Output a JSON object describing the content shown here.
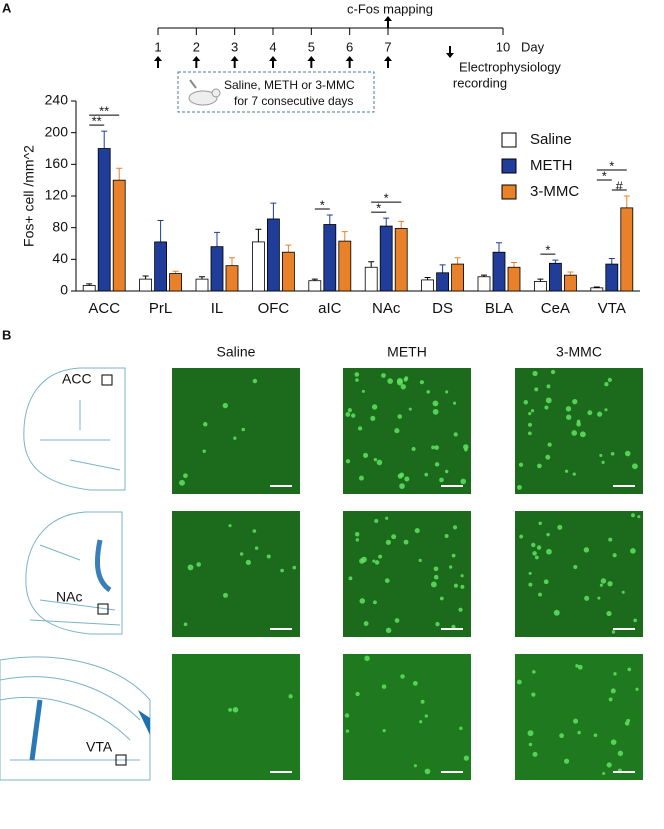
{
  "panel_labels": [
    "A",
    "B"
  ],
  "timeline": {
    "days": [
      1,
      2,
      3,
      4,
      5,
      6,
      7,
      10
    ],
    "unit": "Day",
    "event_top": "c-Fos mapping",
    "event_bottom": [
      "Electrophysiology",
      "recording"
    ],
    "treatment": [
      "Saline, METH or 3-MMC",
      "for 7 consecutive days"
    ]
  },
  "chart_data": {
    "type": "bar",
    "ylabel": "Fos+ cell /mm^2",
    "categories": [
      "ACC",
      "PrL",
      "IL",
      "OFC",
      "aIC",
      "NAc",
      "DS",
      "BLA",
      "CeA",
      "VTA"
    ],
    "series": [
      {
        "name": "Saline",
        "color": "#ffffff",
        "values": [
          7,
          15,
          15,
          62,
          13,
          30,
          14,
          18,
          12,
          4
        ],
        "errors": [
          2,
          4,
          3,
          16,
          2,
          7,
          3,
          2,
          3,
          1
        ]
      },
      {
        "name": "METH",
        "color": "#1f3d99",
        "values": [
          180,
          62,
          56,
          91,
          84,
          82,
          23,
          49,
          35,
          34
        ],
        "errors": [
          22,
          27,
          18,
          20,
          12,
          10,
          10,
          12,
          4,
          7
        ]
      },
      {
        "name": "3-MMC",
        "color": "#e8812a",
        "values": [
          140,
          22,
          32,
          49,
          63,
          79,
          34,
          30,
          20,
          105
        ],
        "errors": [
          15,
          3,
          10,
          9,
          12,
          9,
          8,
          6,
          4,
          15
        ]
      }
    ],
    "ylim": [
      0,
      240
    ],
    "yticks": [
      0,
      40,
      80,
      120,
      160,
      200,
      240
    ],
    "legend": "upper right",
    "annotations": [
      {
        "text": "**",
        "category": "ACC",
        "from": "Saline",
        "to": "METH"
      },
      {
        "text": "**",
        "category": "ACC",
        "from": "Saline",
        "to": "3-MMC"
      },
      {
        "text": "*",
        "category": "aIC",
        "from": "Saline",
        "to": "METH"
      },
      {
        "text": "*",
        "category": "NAc",
        "from": "Saline",
        "to": "METH"
      },
      {
        "text": "*",
        "category": "NAc",
        "from": "Saline",
        "to": "3-MMC"
      },
      {
        "text": "*",
        "category": "CeA",
        "from": "Saline",
        "to": "METH"
      },
      {
        "text": "#",
        "category": "VTA",
        "from": "METH",
        "to": "3-MMC"
      },
      {
        "text": "*",
        "category": "VTA",
        "from": "Saline",
        "to": "METH"
      },
      {
        "text": "*",
        "category": "VTA",
        "from": "Saline",
        "to": "3-MMC"
      }
    ]
  },
  "panel_b": {
    "columns": [
      "Saline",
      "METH",
      "3-MMC"
    ],
    "regions": [
      "ACC",
      "NAc",
      "VTA"
    ]
  }
}
